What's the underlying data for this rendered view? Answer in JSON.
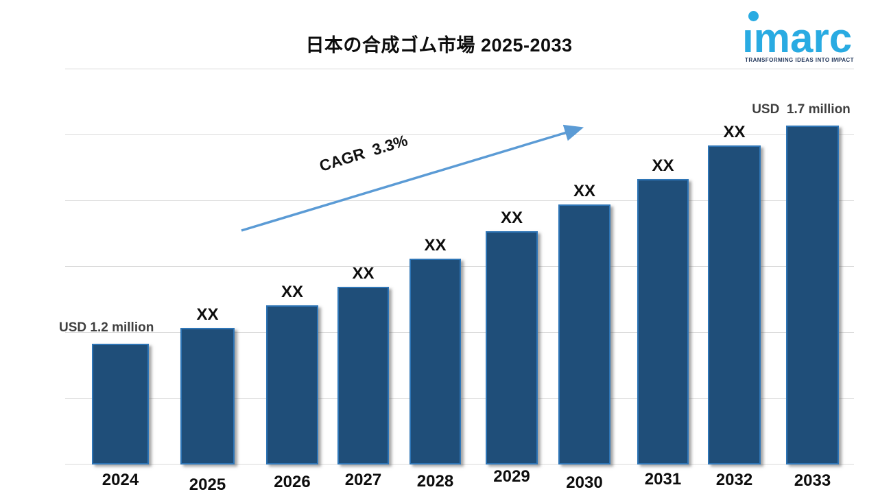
{
  "header": {
    "logo": {
      "brand": "imarc",
      "brand_dotless": "ımarc",
      "tagline": "TRANSFORMING IDEAS INTO IMPACT",
      "brand_color": "#29ABE2",
      "tagline_color": "#22365A"
    }
  },
  "chart_data": {
    "type": "bar",
    "title": "日本の合成ゴム市場 2025-2033",
    "categories": [
      "2024",
      "2025",
      "2026",
      "2027",
      "2028",
      "2029",
      "2030",
      "2031",
      "2032",
      "2033"
    ],
    "values": [
      "1.2",
      "XX",
      "XX",
      "XX",
      "XX",
      "XX",
      "XX",
      "XX",
      "XX",
      "1.7"
    ],
    "value_labels": [
      "USD 1.2 million",
      "XX",
      "XX",
      "XX",
      "XX",
      "XX",
      "XX",
      "XX",
      "XX",
      "USD  1.7 million"
    ],
    "unit": "USD million",
    "cagr_label": "CAGR  3.3%",
    "xlabel": "",
    "ylabel": "",
    "legend": false,
    "gridlines_on": true,
    "colors": {
      "bar_fill": "#1F4E79",
      "bar_border": "#2E75B6",
      "arrow": "#5B9BD5",
      "gridline": "#D9D9D9",
      "value_label_text": "#404040",
      "axis_label_text": "#0D0D0D",
      "title_text": "#0D0D0D"
    }
  }
}
